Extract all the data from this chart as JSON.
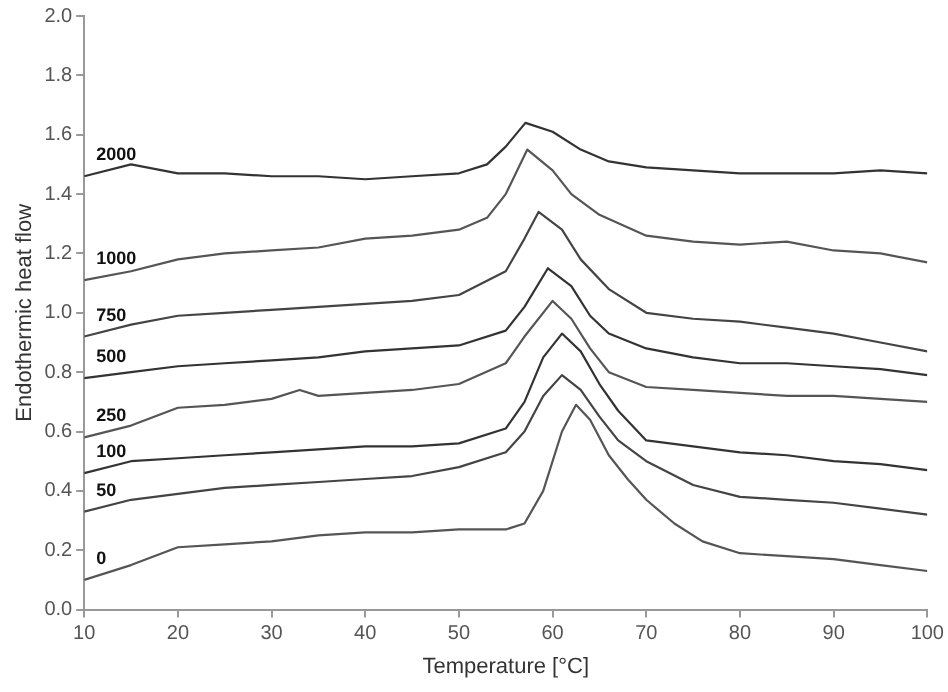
{
  "chart_data": {
    "type": "line",
    "xlabel": "Temperature [°C]",
    "ylabel": "Endothermic heat flow",
    "xlim": [
      10,
      100
    ],
    "xticks": [
      10,
      20,
      30,
      40,
      50,
      60,
      70,
      80,
      90,
      100
    ],
    "ylim": [
      0,
      2
    ],
    "yticks": [
      {
        "value": 0,
        "label": "0.0"
      },
      {
        "value": 0.2,
        "label": "0.2"
      },
      {
        "value": 0.4,
        "label": "0.4"
      },
      {
        "value": 0.6,
        "label": "0.6"
      },
      {
        "value": 0.8,
        "label": "0.8"
      },
      {
        "value": 1,
        "label": "1.0"
      },
      {
        "value": 1.2,
        "label": "1.2"
      },
      {
        "value": 1.4,
        "label": "1.4"
      },
      {
        "value": 1.6,
        "label": "1.6"
      },
      {
        "value": 1.8,
        "label": "1.8"
      },
      {
        "value": 2,
        "label": "2.0"
      }
    ],
    "grid": false,
    "legend": false,
    "marker": "none",
    "line_style": "solid",
    "series": [
      {
        "name": "0",
        "color": "#555555",
        "x": [
          10,
          15,
          20,
          25,
          30,
          35,
          40,
          45,
          50,
          55,
          57,
          59,
          61,
          62.5,
          64,
          66,
          68,
          70,
          73,
          76,
          80,
          85,
          90,
          95,
          100
        ],
        "values": [
          0.1,
          0.15,
          0.21,
          0.22,
          0.23,
          0.25,
          0.26,
          0.26,
          0.27,
          0.27,
          0.29,
          0.4,
          0.6,
          0.69,
          0.64,
          0.52,
          0.44,
          0.37,
          0.29,
          0.23,
          0.19,
          0.18,
          0.17,
          0.15,
          0.13
        ]
      },
      {
        "name": "50",
        "color": "#444444",
        "x": [
          10,
          15,
          20,
          25,
          30,
          35,
          40,
          45,
          50,
          55,
          57,
          59,
          61,
          63,
          65,
          67,
          70,
          75,
          80,
          85,
          90,
          95,
          100
        ],
        "values": [
          0.33,
          0.37,
          0.39,
          0.41,
          0.42,
          0.43,
          0.44,
          0.45,
          0.48,
          0.53,
          0.6,
          0.72,
          0.79,
          0.74,
          0.65,
          0.57,
          0.5,
          0.42,
          0.38,
          0.37,
          0.36,
          0.34,
          0.32
        ]
      },
      {
        "name": "100",
        "color": "#333333",
        "x": [
          10,
          15,
          20,
          25,
          30,
          35,
          40,
          45,
          50,
          55,
          57,
          59,
          61,
          63,
          65,
          67,
          70,
          75,
          80,
          85,
          90,
          95,
          100
        ],
        "values": [
          0.46,
          0.5,
          0.51,
          0.52,
          0.53,
          0.54,
          0.55,
          0.55,
          0.56,
          0.61,
          0.7,
          0.85,
          0.93,
          0.87,
          0.76,
          0.67,
          0.57,
          0.55,
          0.53,
          0.52,
          0.5,
          0.49,
          0.47
        ]
      },
      {
        "name": "250",
        "color": "#555555",
        "x": [
          10,
          15,
          20,
          25,
          30,
          33,
          35,
          40,
          45,
          50,
          55,
          57,
          60,
          62,
          64,
          66,
          70,
          75,
          80,
          85,
          90,
          95,
          100
        ],
        "values": [
          0.58,
          0.62,
          0.68,
          0.69,
          0.71,
          0.74,
          0.72,
          0.73,
          0.74,
          0.76,
          0.83,
          0.92,
          1.04,
          0.98,
          0.88,
          0.8,
          0.75,
          0.74,
          0.73,
          0.72,
          0.72,
          0.71,
          0.7
        ]
      },
      {
        "name": "500",
        "color": "#333333",
        "x": [
          10,
          15,
          20,
          25,
          30,
          35,
          40,
          45,
          50,
          55,
          57,
          59.5,
          62,
          64,
          66,
          70,
          75,
          80,
          85,
          90,
          95,
          100
        ],
        "values": [
          0.78,
          0.8,
          0.82,
          0.83,
          0.84,
          0.85,
          0.87,
          0.88,
          0.89,
          0.94,
          1.02,
          1.15,
          1.09,
          0.99,
          0.93,
          0.88,
          0.85,
          0.83,
          0.83,
          0.82,
          0.81,
          0.79
        ]
      },
      {
        "name": "750",
        "color": "#444444",
        "x": [
          10,
          15,
          20,
          25,
          30,
          35,
          40,
          45,
          50,
          55,
          57,
          58.5,
          61,
          63,
          66,
          70,
          75,
          80,
          85,
          90,
          95,
          100
        ],
        "values": [
          0.92,
          0.96,
          0.99,
          1.0,
          1.01,
          1.02,
          1.03,
          1.04,
          1.06,
          1.14,
          1.25,
          1.34,
          1.28,
          1.18,
          1.08,
          1.0,
          0.98,
          0.97,
          0.95,
          0.93,
          0.9,
          0.87
        ]
      },
      {
        "name": "1000",
        "color": "#555555",
        "x": [
          10,
          15,
          20,
          25,
          30,
          35,
          40,
          45,
          50,
          53,
          55,
          57.3,
          60,
          62,
          65,
          70,
          75,
          80,
          85,
          90,
          95,
          100
        ],
        "values": [
          1.11,
          1.14,
          1.18,
          1.2,
          1.21,
          1.22,
          1.25,
          1.26,
          1.28,
          1.32,
          1.4,
          1.55,
          1.48,
          1.4,
          1.33,
          1.26,
          1.24,
          1.23,
          1.24,
          1.21,
          1.2,
          1.17
        ]
      },
      {
        "name": "2000",
        "color": "#333333",
        "x": [
          10,
          15,
          20,
          25,
          30,
          35,
          40,
          45,
          50,
          53,
          55,
          57.1,
          60,
          63,
          66,
          70,
          75,
          80,
          85,
          90,
          95,
          100
        ],
        "values": [
          1.46,
          1.5,
          1.47,
          1.47,
          1.46,
          1.46,
          1.45,
          1.46,
          1.47,
          1.5,
          1.56,
          1.64,
          1.61,
          1.55,
          1.51,
          1.49,
          1.48,
          1.47,
          1.47,
          1.47,
          1.48,
          1.47
        ]
      }
    ]
  }
}
